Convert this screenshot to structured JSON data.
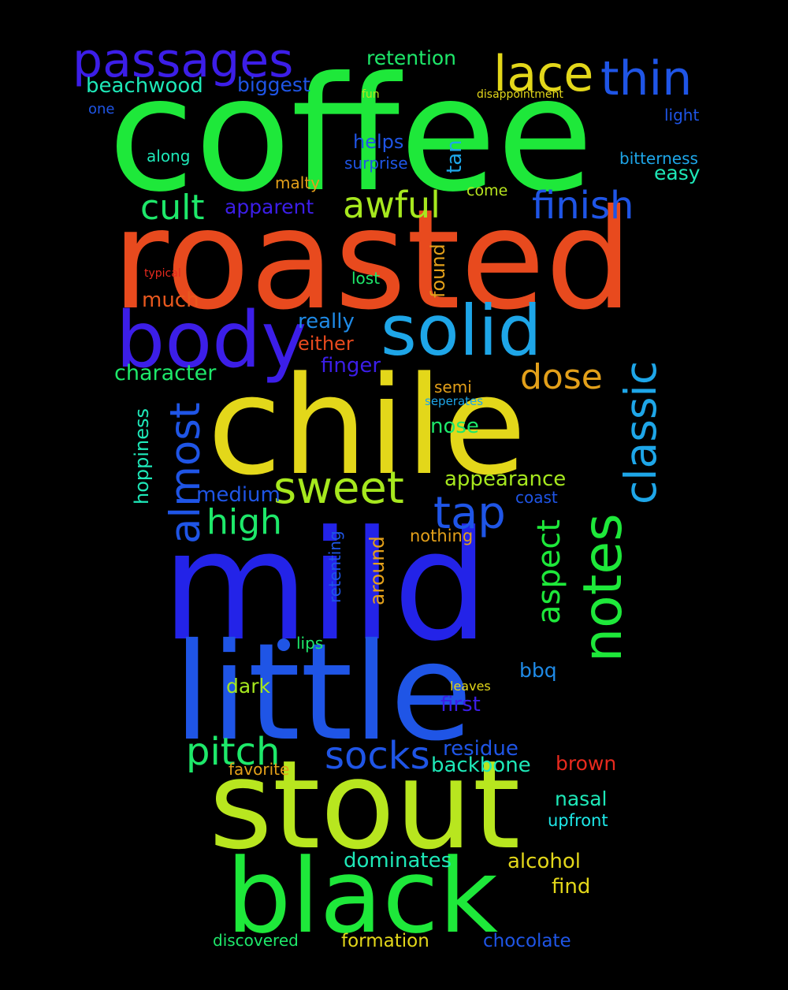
{
  "words": [
    {
      "text": "coffee",
      "color": "#1ee83a"
    },
    {
      "text": "roasted",
      "color": "#e84a1e"
    },
    {
      "text": "chile",
      "color": "#e3d71a"
    },
    {
      "text": "mild",
      "color": "#2323e8"
    },
    {
      "text": "little",
      "color": "#1f55e6"
    },
    {
      "text": "stout",
      "color": "#b8e61f"
    },
    {
      "text": "black",
      "color": "#1ee83a"
    },
    {
      "text": "body",
      "color": "#3c1ee8"
    },
    {
      "text": "solid",
      "color": "#1ea6e8"
    },
    {
      "text": "passages",
      "color": "#3c1ee8"
    },
    {
      "text": "lace",
      "color": "#e3d71a"
    },
    {
      "text": "thin",
      "color": "#1f55e6"
    },
    {
      "text": "classic",
      "color": "#1ea6e8"
    },
    {
      "text": "notes",
      "color": "#1ee83a"
    },
    {
      "text": "sweet",
      "color": "#a6e81e"
    },
    {
      "text": "tap",
      "color": "#1f55e6"
    },
    {
      "text": "finish",
      "color": "#1f55e6"
    },
    {
      "text": "awful",
      "color": "#a6e81e"
    },
    {
      "text": "cult",
      "color": "#1ee86a"
    },
    {
      "text": "almost",
      "color": "#1f55e6"
    },
    {
      "text": "high",
      "color": "#1ee86a"
    },
    {
      "text": "pitch",
      "color": "#1ee86a"
    },
    {
      "text": "socks",
      "color": "#1f55e6"
    },
    {
      "text": "dose",
      "color": "#e3a01a"
    },
    {
      "text": "aspect",
      "color": "#1ee83a"
    },
    {
      "text": "retention",
      "color": "#1ee86a"
    },
    {
      "text": "beachwood",
      "color": "#1ee8b8"
    },
    {
      "text": "biggest",
      "color": "#1f55e6"
    },
    {
      "text": "one",
      "color": "#1f55e6"
    },
    {
      "text": "fun",
      "color": "#b8e61f"
    },
    {
      "text": "disappointment",
      "color": "#e3d71a"
    },
    {
      "text": "light",
      "color": "#1f55e6"
    },
    {
      "text": "along",
      "color": "#1ee8b8"
    },
    {
      "text": "helps",
      "color": "#1f55e6"
    },
    {
      "text": "surprise",
      "color": "#1f55e6"
    },
    {
      "text": "tan",
      "color": "#1ea6e8"
    },
    {
      "text": "bitterness",
      "color": "#1ea6e8"
    },
    {
      "text": "easy",
      "color": "#1ee8b8"
    },
    {
      "text": "malty",
      "color": "#e3a01a"
    },
    {
      "text": "come",
      "color": "#b8e61f"
    },
    {
      "text": "apparent",
      "color": "#3c1ee8"
    },
    {
      "text": "typical",
      "color": "#e82a1e"
    },
    {
      "text": "lost",
      "color": "#1ee86a"
    },
    {
      "text": "found",
      "color": "#e3a01a"
    },
    {
      "text": "much",
      "color": "#e8581e"
    },
    {
      "text": "really",
      "color": "#1f8ae6"
    },
    {
      "text": "either",
      "color": "#e84a1e"
    },
    {
      "text": "character",
      "color": "#1ee86a"
    },
    {
      "text": "finger",
      "color": "#3c1ee8"
    },
    {
      "text": "semi",
      "color": "#e3a01a"
    },
    {
      "text": "seperates",
      "color": "#1ea6e8"
    },
    {
      "text": "hoppiness",
      "color": "#1ee8b8"
    },
    {
      "text": "nose",
      "color": "#1ee86a"
    },
    {
      "text": "appearance",
      "color": "#a6e81e"
    },
    {
      "text": "medium",
      "color": "#1f55e6"
    },
    {
      "text": "coast",
      "color": "#1f55e6"
    },
    {
      "text": "retenting",
      "color": "#1f55e6"
    },
    {
      "text": "around",
      "color": "#e3a01a"
    },
    {
      "text": "nothing",
      "color": "#e3a01a"
    },
    {
      "text": "lips",
      "color": "#1ee86a"
    },
    {
      "text": "bbq",
      "color": "#1f8ae6"
    },
    {
      "text": "dark",
      "color": "#a6e81e"
    },
    {
      "text": "leaves",
      "color": "#e3d71a"
    },
    {
      "text": "first",
      "color": "#3c1ee8"
    },
    {
      "text": "residue",
      "color": "#1f55e6"
    },
    {
      "text": "backbone",
      "color": "#1ee8b8"
    },
    {
      "text": "favorite",
      "color": "#e3a01a"
    },
    {
      "text": "brown",
      "color": "#e82a1e"
    },
    {
      "text": "nasal",
      "color": "#1ee8b8"
    },
    {
      "text": "upfront",
      "color": "#1ee8e8"
    },
    {
      "text": "dominates",
      "color": "#1ee8b8"
    },
    {
      "text": "alcohol",
      "color": "#e3d71a"
    },
    {
      "text": "find",
      "color": "#e3d71a"
    },
    {
      "text": "discovered",
      "color": "#1ee86a"
    },
    {
      "text": "formation",
      "color": "#e3d71a"
    },
    {
      "text": "chocolate",
      "color": "#1f55e6"
    }
  ]
}
